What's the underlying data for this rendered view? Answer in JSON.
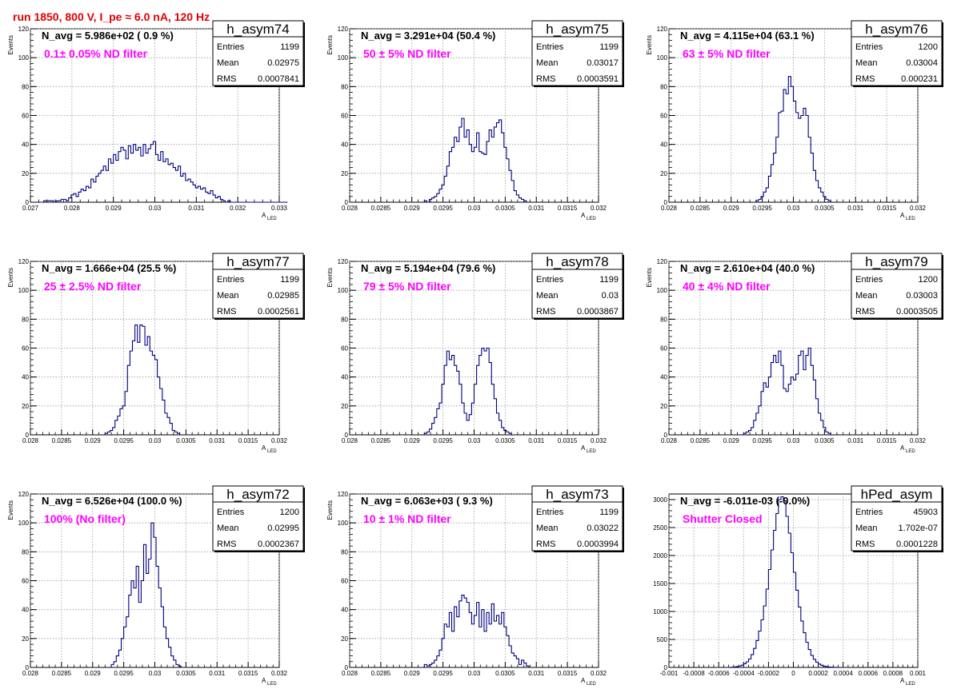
{
  "run_title": "run 1850,   800 V, I_pe ≈ 6.0 nA, 120 Hz",
  "colors": {
    "histogram": "#00007f",
    "title": "#e00000",
    "filter_label": "#ff00ff",
    "grid": "#9a9a9a"
  },
  "chart_data": [
    {
      "type": "histogram",
      "name": "h_asym74",
      "navg_text": "N_avg = 5.986e+02 ( 0.9 %)",
      "filter_text": "0.1± 0.05% ND filter",
      "stats": {
        "entries": "1199",
        "mean": "0.02975",
        "rms": "0.0007841"
      },
      "xlim": [
        0.027,
        0.033
      ],
      "ylim": [
        0,
        120
      ],
      "xticks": [
        "0.027",
        "0.028",
        "0.029",
        "0.03",
        "0.031",
        "0.032",
        "0.033"
      ],
      "yticks": [
        "0",
        "20",
        "40",
        "60",
        "80",
        "100",
        "120"
      ],
      "xlabel": "A",
      "xlabel_sub": "LED",
      "ylabel": "Events",
      "grid": true,
      "bin_start": 0.0272,
      "bin_width": 6e-05,
      "counts": [
        0,
        0,
        1,
        1,
        1,
        1,
        0,
        1,
        1,
        2,
        2,
        1,
        3,
        5,
        6,
        4,
        7,
        9,
        8,
        11,
        10,
        16,
        14,
        18,
        20,
        22,
        25,
        22,
        30,
        27,
        33,
        29,
        35,
        38,
        36,
        30,
        39,
        34,
        40,
        36,
        38,
        32,
        40,
        34,
        37,
        40,
        42,
        33,
        29,
        35,
        28,
        30,
        26,
        27,
        24,
        22,
        25,
        18,
        20,
        15,
        16,
        14,
        12,
        10,
        11,
        9,
        10,
        7,
        6,
        8,
        5,
        3,
        4,
        2,
        1,
        0,
        1,
        0,
        0,
        0,
        0,
        0,
        0,
        0,
        0,
        0,
        0,
        0,
        0,
        0,
        0,
        0,
        0,
        0,
        0,
        0,
        0,
        0,
        0,
        0
      ]
    },
    {
      "type": "histogram",
      "name": "h_asym75",
      "navg_text": "N_avg = 3.291e+04 (50.4 %)",
      "filter_text": "50 ± 5% ND filter",
      "stats": {
        "entries": "1199",
        "mean": "0.03017",
        "rms": "0.0003591"
      },
      "xlim": [
        0.028,
        0.032
      ],
      "ylim": [
        0,
        120
      ],
      "xticks": [
        "0.028",
        "0.0285",
        "0.029",
        "0.0295",
        "0.03",
        "0.0305",
        "0.031",
        "0.0315",
        "0.032"
      ],
      "yticks": [
        "0",
        "20",
        "40",
        "60",
        "80",
        "100",
        "120"
      ],
      "xlabel": "A",
      "xlabel_sub": "LED",
      "ylabel": "Events",
      "grid": true,
      "bin_start": 0.0292,
      "bin_width": 4e-05,
      "counts": [
        1,
        0,
        2,
        3,
        4,
        6,
        9,
        12,
        18,
        25,
        35,
        38,
        45,
        42,
        52,
        58,
        45,
        50,
        40,
        35,
        38,
        48,
        35,
        34,
        33,
        42,
        50,
        45,
        52,
        55,
        57,
        48,
        38,
        30,
        22,
        15,
        8,
        5,
        3,
        2,
        1
      ]
    },
    {
      "type": "histogram",
      "name": "h_asym76",
      "navg_text": "N_avg = 4.115e+04 (63.1 %)",
      "filter_text": "63 ± 5% ND filter",
      "stats": {
        "entries": "1200",
        "mean": "0.03004",
        "rms": "0.000231"
      },
      "xlim": [
        0.028,
        0.032
      ],
      "ylim": [
        0,
        120
      ],
      "xticks": [
        "0.028",
        "0.0285",
        "0.029",
        "0.0295",
        "0.03",
        "0.0305",
        "0.031",
        "0.0315",
        "0.032"
      ],
      "yticks": [
        "0",
        "20",
        "40",
        "60",
        "80",
        "100",
        "120"
      ],
      "xlabel": "A",
      "xlabel_sub": "LED",
      "ylabel": "Events",
      "grid": true,
      "bin_start": 0.0294,
      "bin_width": 4e-05,
      "counts": [
        1,
        2,
        4,
        7,
        10,
        18,
        26,
        34,
        45,
        62,
        63,
        78,
        75,
        87,
        80,
        70,
        62,
        58,
        60,
        65,
        60,
        45,
        34,
        22,
        15,
        10,
        7,
        4,
        2,
        1
      ]
    },
    {
      "type": "histogram",
      "name": "h_asym77",
      "navg_text": "N_avg = 1.666e+04 (25.5 %)",
      "filter_text": "25 ± 2.5% ND filter",
      "stats": {
        "entries": "1199",
        "mean": "0.02985",
        "rms": "0.0002561"
      },
      "xlim": [
        0.028,
        0.032
      ],
      "ylim": [
        0,
        120
      ],
      "xticks": [
        "0.028",
        "0.0285",
        "0.029",
        "0.0295",
        "0.03",
        "0.0305",
        "0.031",
        "0.0315",
        "0.032"
      ],
      "yticks": [
        "0",
        "20",
        "40",
        "60",
        "80",
        "100",
        "120"
      ],
      "xlabel": "A",
      "xlabel_sub": "LED",
      "ylabel": "Events",
      "grid": true,
      "bin_start": 0.0292,
      "bin_width": 4e-05,
      "counts": [
        1,
        2,
        3,
        5,
        10,
        13,
        18,
        20,
        30,
        48,
        58,
        65,
        76,
        64,
        76,
        75,
        62,
        68,
        58,
        55,
        52,
        40,
        32,
        24,
        15,
        12,
        8,
        3,
        2,
        1
      ]
    },
    {
      "type": "histogram",
      "name": "h_asym78",
      "navg_text": "N_avg = 5.194e+04 (79.6 %)",
      "filter_text": "79 ± 5% ND filter",
      "stats": {
        "entries": "1199",
        "mean": "0.03",
        "rms": "0.0003867"
      },
      "xlim": [
        0.028,
        0.032
      ],
      "ylim": [
        0,
        120
      ],
      "xticks": [
        "0.028",
        "0.0285",
        "0.029",
        "0.0295",
        "0.03",
        "0.0305",
        "0.031",
        "0.0315",
        "0.032"
      ],
      "yticks": [
        "0",
        "20",
        "40",
        "60",
        "80",
        "100",
        "120"
      ],
      "xlabel": "A",
      "xlabel_sub": "LED",
      "ylabel": "Events",
      "grid": true,
      "bin_start": 0.0292,
      "bin_width": 4e-05,
      "counts": [
        1,
        2,
        4,
        8,
        12,
        18,
        22,
        35,
        48,
        58,
        52,
        55,
        48,
        44,
        35,
        22,
        15,
        10,
        14,
        22,
        35,
        48,
        55,
        60,
        58,
        60,
        50,
        35,
        25,
        15,
        10,
        5,
        3,
        2,
        1
      ]
    },
    {
      "type": "histogram",
      "name": "h_asym79",
      "navg_text": "N_avg = 2.610e+04 (40.0 %)",
      "filter_text": "40 ± 4% ND filter",
      "stats": {
        "entries": "1200",
        "mean": "0.03003",
        "rms": "0.0003505"
      },
      "xlim": [
        0.028,
        0.032
      ],
      "ylim": [
        0,
        120
      ],
      "xticks": [
        "0.028",
        "0.0285",
        "0.029",
        "0.0295",
        "0.03",
        "0.0305",
        "0.031",
        "0.0315",
        "0.032"
      ],
      "yticks": [
        "0",
        "20",
        "40",
        "60",
        "80",
        "100",
        "120"
      ],
      "xlabel": "A",
      "xlabel_sub": "LED",
      "ylabel": "Events",
      "grid": true,
      "bin_start": 0.0292,
      "bin_width": 4e-05,
      "counts": [
        1,
        2,
        3,
        5,
        10,
        15,
        20,
        30,
        36,
        33,
        40,
        50,
        55,
        50,
        58,
        48,
        32,
        30,
        35,
        40,
        38,
        42,
        55,
        58,
        45,
        55,
        60,
        48,
        38,
        25,
        15,
        10,
        5,
        2,
        1
      ]
    },
    {
      "type": "histogram",
      "name": "h_asym72",
      "navg_text": "N_avg = 6.526e+04 (100.0 %)",
      "filter_text": "100% (No filter)",
      "stats": {
        "entries": "1200",
        "mean": "0.02995",
        "rms": "0.0002367"
      },
      "xlim": [
        0.028,
        0.032
      ],
      "ylim": [
        0,
        120
      ],
      "xticks": [
        "0.028",
        "0.0285",
        "0.029",
        "0.0295",
        "0.03",
        "0.0305",
        "0.031",
        "0.0315",
        "0.032"
      ],
      "yticks": [
        "0",
        "20",
        "40",
        "60",
        "80",
        "100",
        "120"
      ],
      "xlabel": "A",
      "xlabel_sub": "LED",
      "ylabel": "Events",
      "grid": true,
      "bin_start": 0.0293,
      "bin_width": 4e-05,
      "counts": [
        2,
        4,
        8,
        12,
        20,
        28,
        35,
        50,
        60,
        55,
        70,
        45,
        60,
        85,
        65,
        75,
        100,
        90,
        70,
        55,
        42,
        28,
        20,
        14,
        8,
        5,
        2,
        1
      ]
    },
    {
      "type": "histogram",
      "name": "h_asym73",
      "navg_text": "N_avg = 6.063e+03 ( 9.3 %)",
      "filter_text": "10 ± 1% ND filter",
      "stats": {
        "entries": "1199",
        "mean": "0.03022",
        "rms": "0.0003994"
      },
      "xlim": [
        0.028,
        0.032
      ],
      "ylim": [
        0,
        120
      ],
      "xticks": [
        "0.028",
        "0.0285",
        "0.029",
        "0.0295",
        "0.03",
        "0.0305",
        "0.031",
        "0.0315",
        "0.032"
      ],
      "yticks": [
        "0",
        "20",
        "40",
        "60",
        "80",
        "100",
        "120"
      ],
      "xlabel": "A",
      "xlabel_sub": "LED",
      "ylabel": "Events",
      "grid": true,
      "bin_start": 0.0292,
      "bin_width": 4e-05,
      "counts": [
        2,
        1,
        2,
        3,
        5,
        8,
        12,
        20,
        30,
        28,
        38,
        25,
        42,
        35,
        46,
        50,
        48,
        45,
        38,
        30,
        36,
        45,
        28,
        40,
        25,
        38,
        30,
        44,
        32,
        36,
        30,
        38,
        28,
        22,
        15,
        10,
        8,
        6,
        2,
        5,
        3,
        1
      ]
    },
    {
      "type": "histogram",
      "name": "hPed_asym",
      "navg_text": "N_avg = -6.011e-03 (-0.0%)",
      "filter_text": "Shutter Closed",
      "stats": {
        "entries": "45903",
        "mean": "1.702e-07",
        "rms": "0.0001228"
      },
      "xlim": [
        -0.001,
        0.001
      ],
      "ylim": [
        0,
        3100
      ],
      "xticks": [
        "-0.001",
        "-0.0008",
        "-0.0006",
        "-0.0004",
        "-0.0002",
        "0",
        "0.0002",
        "0.0004",
        "0.0006",
        "0.0008",
        "0.001"
      ],
      "yticks": [
        "0",
        "500",
        "1000",
        "1500",
        "2000",
        "2500",
        "3000"
      ],
      "xlabel": "A",
      "xlabel_sub": "LED",
      "ylabel": "",
      "grid": true,
      "bin_start": -0.0005,
      "bin_width": 2e-05,
      "counts": [
        4,
        8,
        15,
        25,
        40,
        65,
        100,
        150,
        230,
        340,
        480,
        650,
        850,
        1100,
        1400,
        1750,
        2100,
        2450,
        2750,
        3000,
        3050,
        2980,
        2700,
        2400,
        2050,
        1700,
        1380,
        1080,
        830,
        620,
        450,
        320,
        215,
        145,
        95,
        60,
        38,
        22,
        13,
        7,
        4,
        2,
        1
      ]
    }
  ]
}
